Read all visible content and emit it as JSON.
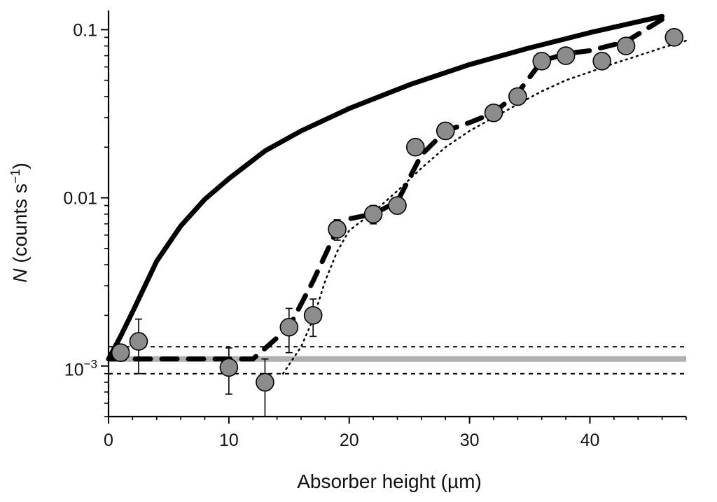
{
  "chart_data": {
    "type": "scatter",
    "title": "",
    "xlabel": "Absorber height  (µm)",
    "ylabel_main": "N",
    "ylabel_rest": " (counts s",
    "ylabel_sup": "−1",
    "ylabel_close": ")",
    "xlim": [
      0,
      48
    ],
    "ylim": [
      0.0005,
      0.13
    ],
    "yscale": "log",
    "x_ticks": [
      0,
      10,
      20,
      30,
      40
    ],
    "x_tick_labels": [
      "0",
      "10",
      "20",
      "30",
      "40"
    ],
    "y_ticks": [
      0.1,
      0.01
    ],
    "y_tick_labels": [
      "0.1",
      "0.01"
    ],
    "y_tick_exp_value": 0.001,
    "y_tick_exp_base": "10",
    "y_tick_exp_sup": "−3",
    "grid": false,
    "series": [
      {
        "style": "markers",
        "color": "#8c8c8c",
        "points": [
          {
            "x": 1,
            "y": 0.0012,
            "err_low": 5e-05,
            "err_high": 5e-05
          },
          {
            "x": 2.5,
            "y": 0.0014,
            "err_low": 0.0005,
            "err_high": 0.0005
          },
          {
            "x": 10,
            "y": 0.00098,
            "err_low": 0.0003,
            "err_high": 0.0003
          },
          {
            "x": 13,
            "y": 0.0008,
            "err_low": 0.0003,
            "err_high": 0.0003
          },
          {
            "x": 15,
            "y": 0.0017,
            "err_low": 0.0005,
            "err_high": 0.0005
          },
          {
            "x": 17,
            "y": 0.002,
            "err_low": 0.0005,
            "err_high": 0.0005
          },
          {
            "x": 19,
            "y": 0.0065,
            "err_low": 0.0009,
            "err_high": 0.0009
          },
          {
            "x": 22,
            "y": 0.008,
            "err_low": 0.001,
            "err_high": 0.001
          },
          {
            "x": 24,
            "y": 0.009,
            "err_low": 0.001,
            "err_high": 0.001
          },
          {
            "x": 25.5,
            "y": 0.02,
            "err_low": 0.002,
            "err_high": 0.002
          },
          {
            "x": 28,
            "y": 0.025,
            "err_low": 0.0025,
            "err_high": 0.0025
          },
          {
            "x": 32,
            "y": 0.032,
            "err_low": 0.003,
            "err_high": 0.003
          },
          {
            "x": 34,
            "y": 0.04,
            "err_low": 0.004,
            "err_high": 0.004
          },
          {
            "x": 36,
            "y": 0.065,
            "err_low": 0.006,
            "err_high": 0.006
          },
          {
            "x": 38,
            "y": 0.07,
            "err_low": 0.007,
            "err_high": 0.007
          },
          {
            "x": 41,
            "y": 0.065,
            "err_low": 0.006,
            "err_high": 0.006
          },
          {
            "x": 43,
            "y": 0.08,
            "err_low": 0.008,
            "err_high": 0.008
          },
          {
            "x": 47,
            "y": 0.09,
            "err_low": 0.009,
            "err_high": 0.009
          }
        ]
      },
      {
        "style": "solid",
        "color": "#000000",
        "x": [
          0,
          1,
          2,
          4,
          6,
          8,
          10,
          13,
          16,
          20,
          25,
          30,
          35,
          40,
          46
        ],
        "y": [
          0.0011,
          0.0015,
          0.0021,
          0.0042,
          0.0068,
          0.0098,
          0.013,
          0.019,
          0.025,
          0.034,
          0.047,
          0.062,
          0.078,
          0.096,
          0.12
        ]
      },
      {
        "style": "dashed",
        "color": "#000000",
        "x": [
          0,
          12,
          15,
          17,
          19,
          20,
          22,
          24,
          26,
          28,
          30,
          32,
          34,
          36,
          38,
          40,
          43,
          46
        ],
        "y": [
          0.0011,
          0.0011,
          0.0017,
          0.0032,
          0.0065,
          0.0075,
          0.008,
          0.0095,
          0.018,
          0.025,
          0.028,
          0.032,
          0.042,
          0.065,
          0.072,
          0.075,
          0.085,
          0.115
        ]
      },
      {
        "style": "dotted",
        "color": "#000000",
        "x": [
          14.5,
          16,
          17,
          18,
          19,
          20,
          22,
          24,
          26,
          28,
          30,
          32,
          34,
          36,
          38,
          40,
          42,
          44,
          46,
          48
        ],
        "y": [
          0.0009,
          0.0013,
          0.0019,
          0.0032,
          0.0048,
          0.0064,
          0.0082,
          0.011,
          0.015,
          0.02,
          0.025,
          0.03,
          0.036,
          0.043,
          0.05,
          0.056,
          0.063,
          0.07,
          0.078,
          0.086
        ]
      },
      {
        "style": "band",
        "color": "#b0b0b0",
        "x": [
          0,
          48
        ],
        "y": [
          0.0011,
          0.0011
        ]
      },
      {
        "style": "short-dashed",
        "color": "#000000",
        "x": [
          0,
          48
        ],
        "y": [
          0.0013,
          0.0013
        ]
      },
      {
        "style": "short-dashed",
        "color": "#000000",
        "x": [
          0,
          48
        ],
        "y": [
          0.0009,
          0.0009
        ]
      }
    ]
  }
}
